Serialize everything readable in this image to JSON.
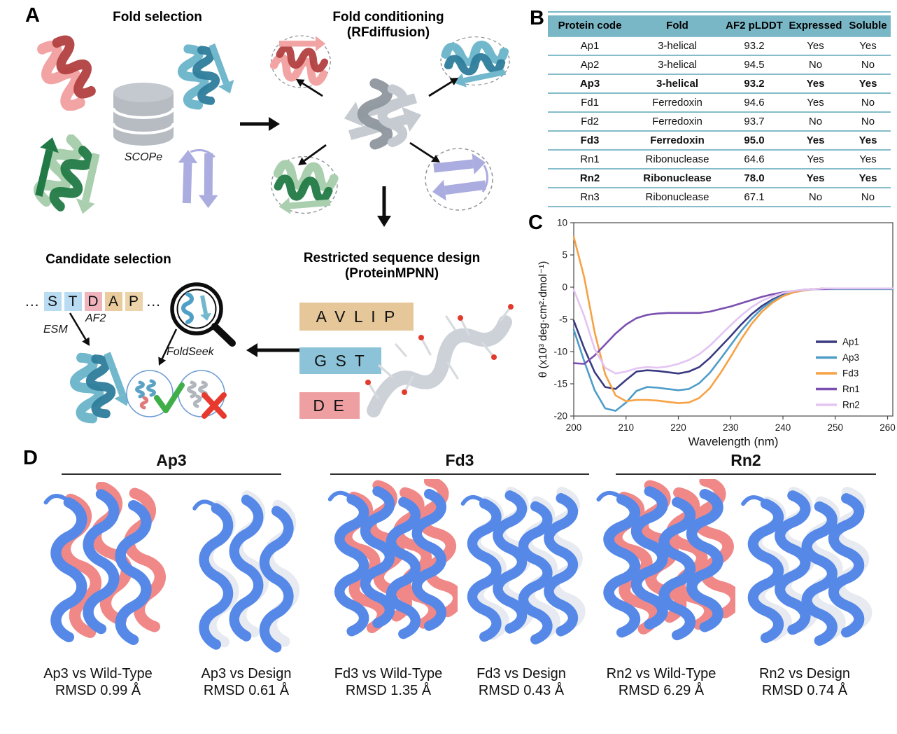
{
  "panels": {
    "a": "A",
    "b": "B",
    "c": "C",
    "d": "D"
  },
  "panel_a": {
    "fold_selection": {
      "title": "Fold selection",
      "database_label": "SCOPe"
    },
    "fold_conditioning": {
      "title_line1": "Fold conditioning",
      "title_line2": "(RFdiffusion)"
    },
    "restricted_design": {
      "title_line1": "Restricted sequence design",
      "title_line2": "(ProteinMPNN)",
      "residue_groups": [
        {
          "letters": "A V L I P",
          "color": "#e6c79a"
        },
        {
          "letters": "G S T",
          "color": "#8cc3d8"
        },
        {
          "letters": "D E",
          "color": "#ee9fa2"
        }
      ]
    },
    "candidate_selection": {
      "title": "Candidate selection",
      "sequence_prefix": "...",
      "sequence_suffix": "...",
      "sequence": [
        {
          "letter": "S",
          "color": "#b9dcf2"
        },
        {
          "letter": "T",
          "color": "#b9dcf2"
        },
        {
          "letter": "D",
          "color": "#f0b4bd"
        },
        {
          "letter": "A",
          "color": "#e9cb9d"
        },
        {
          "letter": "P",
          "color": "#ecd3a9"
        }
      ],
      "esm_label": "ESM",
      "af2_label": "AF2",
      "foldseek_label": "FoldSeek"
    },
    "protein_palette": {
      "red_light": "#f2a3a3",
      "red_dark": "#b24040",
      "teal_light": "#72b8cd",
      "teal_dark": "#2d7c9b",
      "green_light": "#a9cfae",
      "green_dark": "#217a45",
      "purple_light": "#abacdf",
      "purple_dark": "#8a8cd0",
      "gray_light": "#c6cbd1",
      "gray_dark": "#8e969e"
    }
  },
  "panel_b": {
    "table": {
      "header_bg": "#79b7c6",
      "line_color": "#85bcc9",
      "columns": [
        "Protein code",
        "Fold",
        "AF2 pLDDT",
        "Expressed",
        "Soluble"
      ],
      "rows": [
        {
          "cells": [
            "Ap1",
            "3-helical",
            "93.2",
            "Yes",
            "Yes"
          ],
          "bold": false
        },
        {
          "cells": [
            "Ap2",
            "3-helical",
            "94.5",
            "No",
            "No"
          ],
          "bold": false
        },
        {
          "cells": [
            "Ap3",
            "3-helical",
            "93.2",
            "Yes",
            "Yes"
          ],
          "bold": true
        },
        {
          "cells": [
            "Fd1",
            "Ferredoxin",
            "94.6",
            "Yes",
            "No"
          ],
          "bold": false
        },
        {
          "cells": [
            "Fd2",
            "Ferredoxin",
            "93.7",
            "No",
            "No"
          ],
          "bold": false
        },
        {
          "cells": [
            "Fd3",
            "Ferredoxin",
            "95.0",
            "Yes",
            "Yes"
          ],
          "bold": true
        },
        {
          "cells": [
            "Rn1",
            "Ribonuclease",
            "64.6",
            "Yes",
            "Yes"
          ],
          "bold": false
        },
        {
          "cells": [
            "Rn2",
            "Ribonuclease",
            "78.0",
            "Yes",
            "Yes"
          ],
          "bold": true
        },
        {
          "cells": [
            "Rn3",
            "Ribonuclease",
            "67.1",
            "No",
            "No"
          ],
          "bold": false
        }
      ]
    }
  },
  "chart_data": {
    "type": "line",
    "title": "",
    "xlabel": "Wavelength (nm)",
    "ylabel": "θ (x10³ deg·cm²·dmol⁻¹)",
    "xlim": [
      200,
      261
    ],
    "ylim": [
      -20,
      10
    ],
    "xticks": [
      200,
      210,
      220,
      230,
      240,
      250,
      260
    ],
    "yticks": [
      10,
      5,
      0,
      -5,
      -10,
      -15,
      -20
    ],
    "grid": false,
    "legend_position": "inside-right-lower",
    "x": [
      200,
      202,
      204,
      206,
      208,
      210,
      212,
      214,
      216,
      218,
      220,
      222,
      224,
      226,
      228,
      230,
      232,
      234,
      236,
      238,
      240,
      242,
      244,
      246,
      248,
      250,
      252,
      254,
      256,
      258,
      260,
      261
    ],
    "series": [
      {
        "name": "Ap1",
        "color": "#3a3a82",
        "values": [
          -5.2,
          -9.5,
          -13.2,
          -15.5,
          -15.8,
          -14.4,
          -13.1,
          -12.9,
          -13.0,
          -13.2,
          -13.4,
          -13.1,
          -12.4,
          -11.0,
          -9.3,
          -7.6,
          -5.8,
          -4.2,
          -2.9,
          -1.9,
          -1.2,
          -0.7,
          -0.4,
          -0.3,
          -0.2,
          -0.2,
          -0.2,
          -0.2,
          -0.2,
          -0.2,
          -0.2,
          -0.2
        ]
      },
      {
        "name": "Ap3",
        "color": "#4d9dc9",
        "values": [
          -6.6,
          -11.5,
          -16.0,
          -18.8,
          -19.2,
          -17.9,
          -16.1,
          -15.5,
          -15.6,
          -15.8,
          -16.0,
          -15.8,
          -14.9,
          -13.3,
          -11.2,
          -9.0,
          -6.8,
          -4.9,
          -3.3,
          -2.1,
          -1.3,
          -0.8,
          -0.5,
          -0.3,
          -0.3,
          -0.3,
          -0.3,
          -0.3,
          -0.3,
          -0.3,
          -0.3,
          -0.3
        ]
      },
      {
        "name": "Fd3",
        "color": "#f7a144",
        "values": [
          7.8,
          1.5,
          -7.0,
          -13.5,
          -16.8,
          -17.7,
          -17.5,
          -17.5,
          -17.6,
          -17.8,
          -18.0,
          -17.9,
          -17.2,
          -15.7,
          -13.4,
          -10.8,
          -8.1,
          -5.7,
          -3.8,
          -2.4,
          -1.4,
          -0.8,
          -0.5,
          -0.3,
          -0.2,
          -0.2,
          -0.2,
          -0.2,
          -0.2,
          -0.2,
          -0.2,
          -0.2
        ]
      },
      {
        "name": "Rn1",
        "color": "#7a4fb0",
        "values": [
          -11.8,
          -11.9,
          -10.6,
          -8.9,
          -7.2,
          -5.8,
          -4.8,
          -4.3,
          -4.1,
          -4.0,
          -4.0,
          -4.0,
          -4.0,
          -3.8,
          -3.4,
          -3.0,
          -2.5,
          -2.0,
          -1.5,
          -1.1,
          -0.8,
          -0.6,
          -0.4,
          -0.3,
          -0.3,
          -0.2,
          -0.2,
          -0.2,
          -0.2,
          -0.2,
          -0.2,
          -0.2
        ]
      },
      {
        "name": "Rn2",
        "color": "#e3c4f2",
        "values": [
          -0.4,
          -4.5,
          -9.6,
          -12.5,
          -13.4,
          -13.1,
          -12.6,
          -12.4,
          -12.5,
          -12.3,
          -11.9,
          -11.3,
          -10.4,
          -9.1,
          -7.5,
          -5.9,
          -4.4,
          -3.1,
          -2.1,
          -1.4,
          -0.9,
          -0.6,
          -0.4,
          -0.3,
          -0.2,
          -0.2,
          -0.2,
          -0.2,
          -0.2,
          -0.2,
          -0.2,
          -0.2
        ]
      }
    ]
  },
  "panel_d": {
    "colors": {
      "model_blue": "#5688e8",
      "wild_type_salmon": "#f08888",
      "design_gray": "#e7eaf0"
    },
    "groups": [
      {
        "header": "Ap3",
        "items": [
          {
            "caption_line1": "Ap3 vs Wild-Type",
            "caption_line2": "RMSD 0.99 Å",
            "overlay": "wild-type"
          },
          {
            "caption_line1": "Ap3 vs Design",
            "caption_line2": "RMSD 0.61 Å",
            "overlay": "design"
          }
        ]
      },
      {
        "header": "Fd3",
        "items": [
          {
            "caption_line1": "Fd3 vs Wild-Type",
            "caption_line2": "RMSD 1.35 Å",
            "overlay": "wild-type"
          },
          {
            "caption_line1": "Fd3 vs Design",
            "caption_line2": "RMSD 0.43 Å",
            "overlay": "design"
          }
        ]
      },
      {
        "header": "Rn2",
        "items": [
          {
            "caption_line1": "Rn2 vs Wild-Type",
            "caption_line2": "RMSD 6.29 Å",
            "overlay": "wild-type"
          },
          {
            "caption_line1": "Rn2 vs Design",
            "caption_line2": "RMSD 0.74 Å",
            "overlay": "design"
          }
        ]
      }
    ]
  }
}
